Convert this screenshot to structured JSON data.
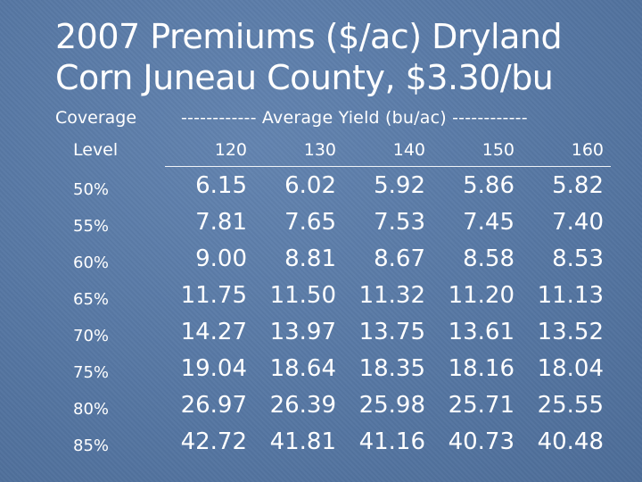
{
  "title_line1": "2007 Premiums ($/ac) Dryland",
  "title_line2": "Corn Juneau County, $3.30/bu",
  "header": {
    "coverage": "Coverage",
    "level": "Level",
    "yield": "------------ Average Yield (bu/ac) ------------"
  },
  "columns": [
    "120",
    "130",
    "140",
    "150",
    "160"
  ],
  "rows": [
    {
      "label": "50%",
      "values": [
        "6.15",
        "6.02",
        "5.92",
        "5.86",
        "5.82"
      ]
    },
    {
      "label": "55%",
      "values": [
        "7.81",
        "7.65",
        "7.53",
        "7.45",
        "7.40"
      ]
    },
    {
      "label": "60%",
      "values": [
        "9.00",
        "8.81",
        "8.67",
        "8.58",
        "8.53"
      ]
    },
    {
      "label": "65%",
      "values": [
        "11.75",
        "11.50",
        "11.32",
        "11.20",
        "11.13"
      ]
    },
    {
      "label": "70%",
      "values": [
        "14.27",
        "13.97",
        "13.75",
        "13.61",
        "13.52"
      ]
    },
    {
      "label": "75%",
      "values": [
        "19.04",
        "18.64",
        "18.35",
        "18.16",
        "18.04"
      ]
    },
    {
      "label": "80%",
      "values": [
        "26.97",
        "26.39",
        "25.98",
        "25.71",
        "25.55"
      ]
    },
    {
      "label": "85%",
      "values": [
        "42.72",
        "41.81",
        "41.16",
        "40.73",
        "40.48"
      ]
    }
  ]
}
